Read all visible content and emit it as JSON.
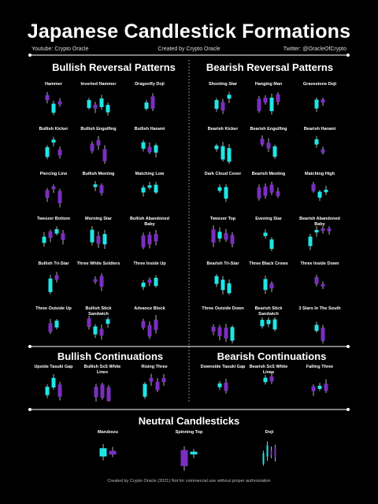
{
  "title": "Japanese Candlestick Formations",
  "header": {
    "left": "Youtube: Crypto Oracle",
    "center": "Created by Crypto Oracle",
    "right": "Twitter: @OracleOfCrypto"
  },
  "sections": [
    {
      "title": "Bullish Reversal Patterns",
      "patterns": [
        "Hammer",
        "Inverted Hammer",
        "Dragonfly Doji",
        "Bullish Kicker",
        "Bullish Engulfing",
        "Bullish Harami",
        "Piercing Line",
        "Bullish Meeting",
        "Matching Low",
        "Tweezer Bottom",
        "Morning Star",
        "Bullish Abandoned Baby",
        "Bullish Tri-Star",
        "Three White Soldiers",
        "Three Inside Up",
        "Three Outside Up",
        "Bullish Stick Sandwich",
        "Advance Block"
      ]
    },
    {
      "title": "Bearish Reversal Patterns",
      "patterns": [
        "Shooting Star",
        "Hanging Man",
        "Gravestone Doji",
        "Bearish Kicker",
        "Bearish Engulfing",
        "Bearish Harami",
        "Dark Cloud Cover",
        "Bearish Meeting",
        "Matching High",
        "Tweezer Top",
        "Evening Star",
        "Bearish Abandoned Baby",
        "Bearish Tri-Star",
        "Three Black Crows",
        "Three Inside Down",
        "Three Outside Down",
        "Bearish Stick Sandwich",
        "3 Stars In The South"
      ]
    },
    {
      "title": "Bullish Continuations",
      "patterns": [
        "Upside Tasuki Gap",
        "Bullish SxS White Lines",
        "Rising Three"
      ]
    },
    {
      "title": "Bearish Continuations",
      "patterns": [
        "Downside Tasuki Gap",
        "Bearish SxS White Lines",
        "Falling Three"
      ]
    },
    {
      "title": "Neutral Candlesticks",
      "patterns": [
        "Marubozu",
        "Spinning Top",
        "Doji"
      ]
    }
  ],
  "footer": "Created by Crypto Oracle (2021) Not for commercial use without proper authroization"
}
